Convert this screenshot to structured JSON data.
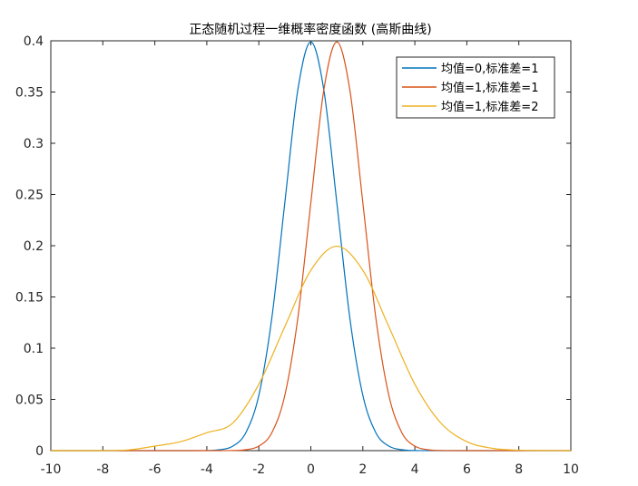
{
  "chart_data": {
    "type": "line",
    "title": "正态随机过程一维概率密度函数 (高斯曲线)",
    "xlabel": "",
    "ylabel": "",
    "xlim": [
      -10,
      10
    ],
    "ylim": [
      0,
      0.4
    ],
    "xticks": [
      -10,
      -8,
      -6,
      -4,
      -2,
      0,
      2,
      4,
      6,
      8,
      10
    ],
    "xtick_labels": [
      "-10",
      "-8",
      "-6",
      "-4",
      "-2",
      "0",
      "2",
      "4",
      "6",
      "8",
      "10"
    ],
    "yticks": [
      0,
      0.05,
      0.1,
      0.15,
      0.2,
      0.25,
      0.3,
      0.35,
      0.4
    ],
    "ytick_labels": [
      "0",
      "0.05",
      "0.1",
      "0.15",
      "0.2",
      "0.25",
      "0.3",
      "0.35",
      "0.4"
    ],
    "grid": false,
    "legend_position": "top-right",
    "series": [
      {
        "name": "均值=0,标准差=1",
        "color": "#0072BD",
        "x": [
          -10,
          -5,
          -4,
          -3.5,
          -3,
          -2.5,
          -2,
          -1.5,
          -1,
          -0.5,
          0,
          0.5,
          1,
          1.5,
          2,
          2.5,
          3,
          3.5,
          4,
          5,
          10
        ],
        "values": [
          0,
          0,
          0.0001,
          0.0009,
          0.0044,
          0.0175,
          0.054,
          0.1295,
          0.242,
          0.3521,
          0.3989,
          0.3521,
          0.242,
          0.1295,
          0.054,
          0.0175,
          0.0044,
          0.0009,
          0.0001,
          0,
          0
        ]
      },
      {
        "name": "均值=1,标准差=1",
        "color": "#D95319",
        "x": [
          -10,
          -4,
          -3,
          -2.5,
          -2,
          -1.5,
          -1,
          -0.5,
          0,
          0.5,
          1,
          1.5,
          2,
          2.5,
          3,
          3.5,
          4,
          4.5,
          5,
          6,
          10
        ],
        "values": [
          0,
          0,
          0.0001,
          0.0009,
          0.0044,
          0.0175,
          0.054,
          0.1295,
          0.242,
          0.3521,
          0.3989,
          0.3521,
          0.242,
          0.1295,
          0.054,
          0.0175,
          0.0044,
          0.0009,
          0.0001,
          0,
          0
        ]
      },
      {
        "name": "均值=1,标准差=2",
        "color": "#EDB120",
        "x": [
          -10,
          -8,
          -7,
          -6,
          -5,
          -4,
          -3,
          -2,
          -1,
          0,
          1,
          2,
          3,
          4,
          5,
          6,
          7,
          8,
          9,
          10
        ],
        "values": [
          0,
          0,
          0.0007,
          0.0044,
          0.0088,
          0.0175,
          0.027,
          0.0648,
          0.121,
          0.176,
          0.1995,
          0.176,
          0.121,
          0.0648,
          0.027,
          0.0088,
          0.0022,
          0.0004,
          0.0001,
          0
        ]
      }
    ]
  }
}
